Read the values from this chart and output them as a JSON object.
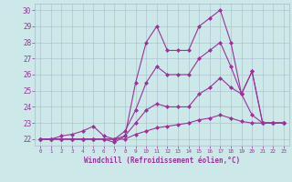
{
  "xlabel": "Windchill (Refroidissement éolien,°C)",
  "xlim": [
    -0.5,
    23.5
  ],
  "ylim": [
    21.6,
    30.4
  ],
  "yticks": [
    22,
    23,
    24,
    25,
    26,
    27,
    28,
    29,
    30
  ],
  "xticks": [
    0,
    1,
    2,
    3,
    4,
    5,
    6,
    7,
    8,
    9,
    10,
    11,
    12,
    13,
    14,
    15,
    16,
    17,
    18,
    19,
    20,
    21,
    22,
    23
  ],
  "background_color": "#cce8e8",
  "grid_color": "#aabbcc",
  "line_color": "#993399",
  "line1_y": [
    22,
    22,
    22,
    22,
    22,
    22,
    22,
    21.8,
    22.2,
    25.5,
    28,
    29,
    27.5,
    27.5,
    27.5,
    29,
    29.5,
    30,
    28,
    24.8,
    26.2,
    23,
    23,
    23
  ],
  "line2_y": [
    22,
    22,
    22.2,
    22.3,
    22.5,
    22.8,
    22.2,
    22,
    22.5,
    23.8,
    25.5,
    26.5,
    26,
    26,
    26,
    27,
    27.5,
    28,
    26.5,
    24.8,
    26.2,
    23,
    23,
    23
  ],
  "line3_y": [
    22,
    22,
    22,
    22,
    22,
    22,
    22,
    22,
    22.2,
    23,
    23.8,
    24.2,
    24,
    24,
    24,
    24.8,
    25.2,
    25.8,
    25.2,
    24.8,
    23.5,
    23,
    23,
    23
  ],
  "line4_y": [
    22,
    22,
    22,
    22,
    22,
    22,
    22,
    22,
    22,
    22.3,
    22.5,
    22.7,
    22.8,
    22.9,
    23,
    23.2,
    23.3,
    23.5,
    23.3,
    23.1,
    23,
    23,
    23,
    23
  ]
}
